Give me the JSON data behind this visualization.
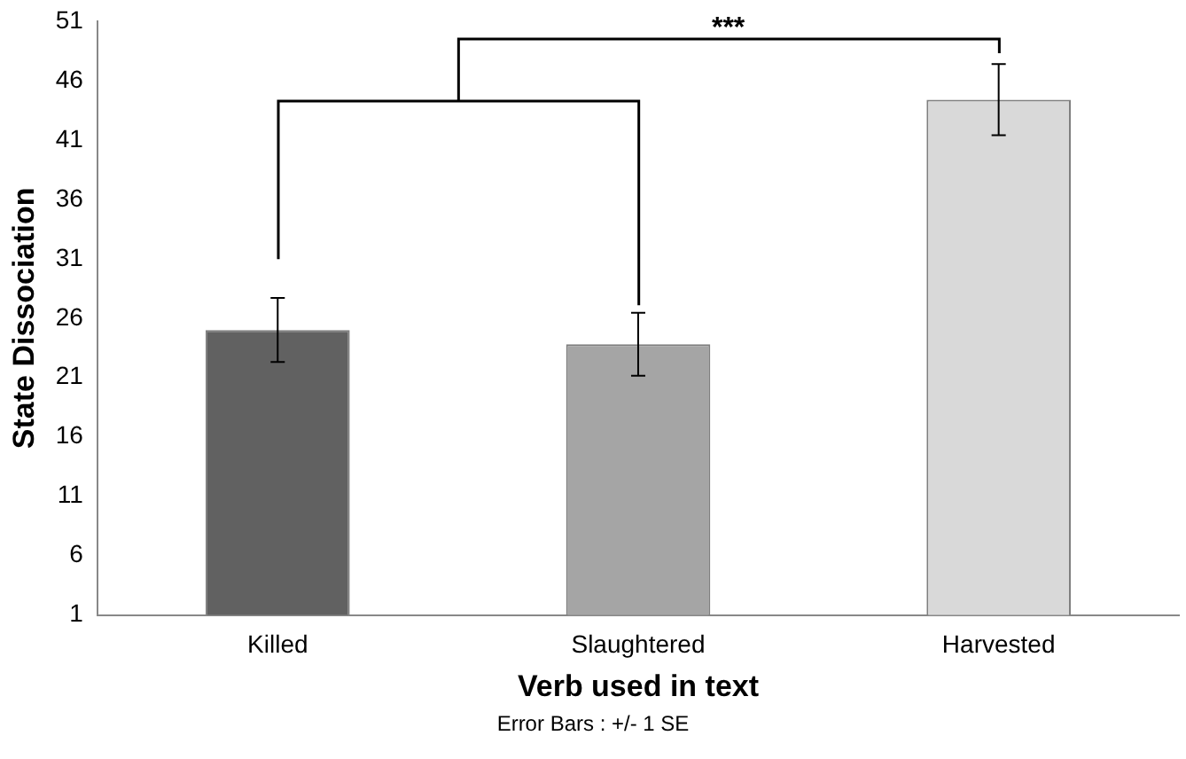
{
  "chart_data": {
    "type": "bar",
    "xlabel": "Verb used in text",
    "ylabel": "State Dissociation",
    "categories": [
      "Killed",
      "Slaughtered",
      "Harvested"
    ],
    "values": [
      25.0,
      23.8,
      44.4
    ],
    "colors": [
      "#616161",
      "#a5a5a5",
      "#d9d9d9"
    ],
    "errors": [
      2.7,
      2.65,
      3.0
    ],
    "ylim": [
      1,
      51
    ],
    "yticks": [
      1,
      6,
      11,
      16,
      21,
      26,
      31,
      36,
      41,
      46,
      51
    ],
    "grid": false,
    "legend": false,
    "annotations": [
      "***",
      "Error Bars : +/- 1 SE"
    ]
  }
}
